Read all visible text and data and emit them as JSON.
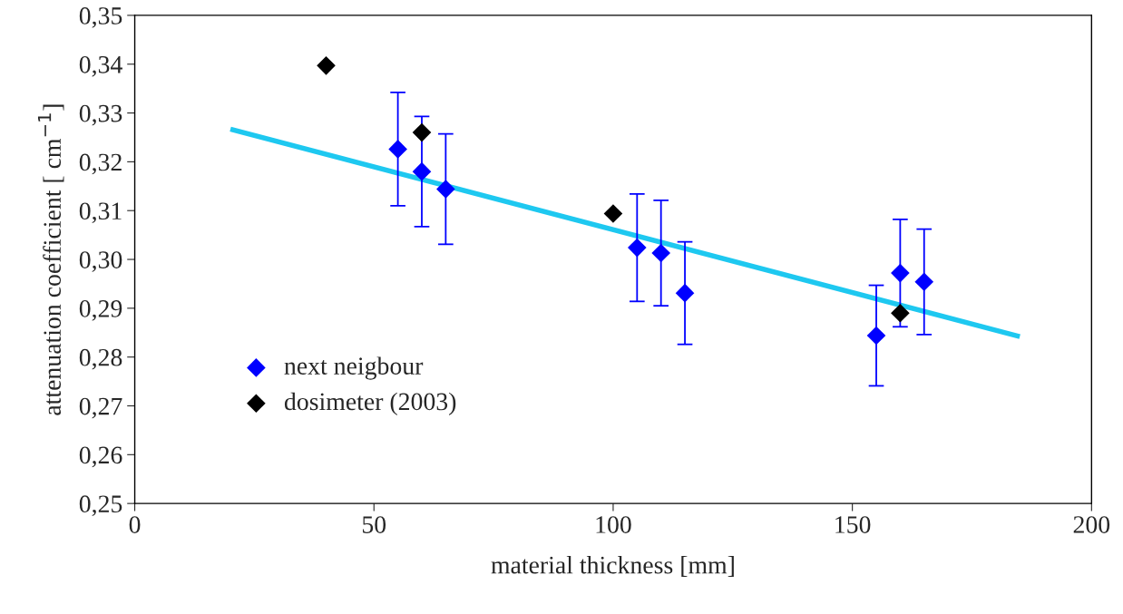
{
  "chart_data": {
    "type": "scatter",
    "xlabel": "material thickness [mm]",
    "ylabel": "attenuation coefficient [ cm$^{−1}$]",
    "xlim": [
      0,
      200
    ],
    "xticks": [
      0,
      50,
      100,
      150,
      200
    ],
    "ylim": [
      0.25,
      0.35
    ],
    "yticks": [
      {
        "value": 0.25,
        "label": "0,25"
      },
      {
        "value": 0.26,
        "label": "0,26"
      },
      {
        "value": 0.27,
        "label": "0,27"
      },
      {
        "value": 0.28,
        "label": "0,28"
      },
      {
        "value": 0.29,
        "label": "0,29"
      },
      {
        "value": 0.3,
        "label": "0,30"
      },
      {
        "value": 0.31,
        "label": "0,31"
      },
      {
        "value": 0.32,
        "label": "0,32"
      },
      {
        "value": 0.33,
        "label": "0,33"
      },
      {
        "value": 0.34,
        "label": "0,34"
      },
      {
        "value": 0.35,
        "label": "0,35"
      }
    ],
    "grid": false,
    "legend": "bottom left",
    "marker": "diamond",
    "series": [
      {
        "type": "line",
        "color": "#1ec8f0",
        "x": [
          20,
          185
        ],
        "values": [
          0.3267,
          0.2842
        ],
        "marker": "none",
        "line_style": "solid"
      },
      {
        "name": "next neigbour",
        "type": "scatter",
        "color": "#0000ff",
        "x": [
          55,
          60,
          65,
          105,
          110,
          115,
          155,
          160,
          165
        ],
        "values": [
          0.3226,
          0.318,
          0.3144,
          0.3024,
          0.3013,
          0.2931,
          0.2844,
          0.2972,
          0.2954
        ],
        "errors": [
          0.0116,
          0.0113,
          0.0113,
          0.011,
          0.0108,
          0.0105,
          0.0103,
          0.011,
          0.0108
        ]
      },
      {
        "name": "dosimeter (2003)",
        "type": "scatter",
        "color": "#000000",
        "x": [
          40,
          60,
          100,
          160
        ],
        "values": [
          0.3397,
          0.326,
          0.3094,
          0.289
        ]
      }
    ]
  }
}
